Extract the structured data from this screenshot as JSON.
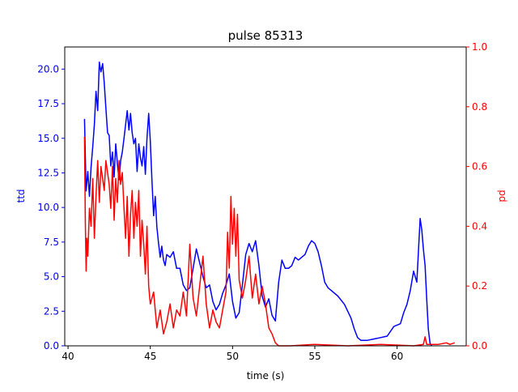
{
  "chart_data": {
    "type": "line",
    "title": "pulse 85313",
    "xlabel": "time (s)",
    "ylabel_left": "ttd",
    "ylabel_right": "pd",
    "xlim": [
      39.8,
      64.2
    ],
    "ylim_left": [
      0,
      21.6
    ],
    "ylim_right": [
      0,
      1.0
    ],
    "x_ticks": [
      40,
      45,
      50,
      55,
      60
    ],
    "y_ticks_left": [
      0.0,
      2.5,
      5.0,
      7.5,
      10.0,
      12.5,
      15.0,
      17.5,
      20.0
    ],
    "y_ticks_right": [
      0.0,
      0.2,
      0.4,
      0.6,
      0.8,
      1.0
    ],
    "grid": false,
    "colors": {
      "ttd": "#0000ff",
      "pd": "#ff0000",
      "axes": "#000000"
    },
    "series": [
      {
        "name": "ttd",
        "axis": "left",
        "color": "#0000ff",
        "points": [
          [
            41.0,
            16.4
          ],
          [
            41.1,
            11.2
          ],
          [
            41.2,
            12.6
          ],
          [
            41.3,
            10.8
          ],
          [
            41.4,
            12.9
          ],
          [
            41.5,
            14.4
          ],
          [
            41.6,
            16.0
          ],
          [
            41.7,
            18.4
          ],
          [
            41.8,
            17.0
          ],
          [
            41.9,
            20.5
          ],
          [
            42.0,
            19.8
          ],
          [
            42.1,
            20.4
          ],
          [
            42.2,
            19.0
          ],
          [
            42.3,
            17.2
          ],
          [
            42.4,
            15.4
          ],
          [
            42.5,
            15.2
          ],
          [
            42.6,
            13.0
          ],
          [
            42.7,
            14.0
          ],
          [
            42.8,
            12.2
          ],
          [
            42.9,
            14.6
          ],
          [
            43.0,
            13.2
          ],
          [
            43.1,
            12.0
          ],
          [
            43.2,
            13.4
          ],
          [
            43.3,
            14.0
          ],
          [
            43.4,
            15.0
          ],
          [
            43.5,
            16.0
          ],
          [
            43.6,
            17.0
          ],
          [
            43.7,
            15.6
          ],
          [
            43.8,
            16.8
          ],
          [
            43.9,
            15.4
          ],
          [
            44.0,
            14.6
          ],
          [
            44.1,
            15.0
          ],
          [
            44.2,
            12.6
          ],
          [
            44.3,
            14.6
          ],
          [
            44.4,
            13.6
          ],
          [
            44.5,
            13.0
          ],
          [
            44.6,
            14.4
          ],
          [
            44.7,
            12.4
          ],
          [
            44.8,
            15.0
          ],
          [
            44.9,
            16.8
          ],
          [
            45.0,
            14.8
          ],
          [
            45.1,
            12.0
          ],
          [
            45.2,
            9.4
          ],
          [
            45.3,
            10.8
          ],
          [
            45.4,
            8.6
          ],
          [
            45.5,
            7.4
          ],
          [
            45.6,
            6.4
          ],
          [
            45.7,
            7.2
          ],
          [
            45.8,
            6.2
          ],
          [
            45.9,
            5.8
          ],
          [
            46.0,
            6.6
          ],
          [
            46.2,
            6.4
          ],
          [
            46.4,
            6.8
          ],
          [
            46.6,
            5.6
          ],
          [
            46.8,
            5.6
          ],
          [
            47.0,
            4.4
          ],
          [
            47.2,
            4.0
          ],
          [
            47.4,
            4.2
          ],
          [
            47.6,
            5.6
          ],
          [
            47.8,
            7.0
          ],
          [
            48.0,
            6.0
          ],
          [
            48.2,
            5.0
          ],
          [
            48.4,
            4.2
          ],
          [
            48.6,
            4.4
          ],
          [
            48.8,
            3.2
          ],
          [
            49.0,
            2.6
          ],
          [
            49.2,
            3.0
          ],
          [
            49.4,
            3.8
          ],
          [
            49.6,
            4.4
          ],
          [
            49.8,
            5.2
          ],
          [
            50.0,
            3.2
          ],
          [
            50.2,
            2.0
          ],
          [
            50.4,
            2.4
          ],
          [
            50.6,
            4.4
          ],
          [
            50.8,
            6.6
          ],
          [
            51.0,
            7.4
          ],
          [
            51.2,
            6.8
          ],
          [
            51.4,
            7.6
          ],
          [
            51.6,
            5.8
          ],
          [
            51.8,
            3.6
          ],
          [
            52.0,
            2.8
          ],
          [
            52.2,
            3.4
          ],
          [
            52.4,
            2.2
          ],
          [
            52.6,
            1.8
          ],
          [
            52.8,
            4.6
          ],
          [
            53.0,
            6.2
          ],
          [
            53.2,
            5.6
          ],
          [
            53.4,
            5.6
          ],
          [
            53.6,
            5.8
          ],
          [
            53.8,
            6.4
          ],
          [
            54.0,
            6.2
          ],
          [
            54.2,
            6.4
          ],
          [
            54.4,
            6.6
          ],
          [
            54.6,
            7.2
          ],
          [
            54.8,
            7.6
          ],
          [
            55.0,
            7.4
          ],
          [
            55.2,
            6.8
          ],
          [
            55.4,
            5.8
          ],
          [
            55.6,
            4.6
          ],
          [
            55.8,
            4.2
          ],
          [
            56.0,
            4.0
          ],
          [
            56.4,
            3.6
          ],
          [
            56.8,
            3.0
          ],
          [
            57.2,
            2.0
          ],
          [
            57.4,
            1.2
          ],
          [
            57.6,
            0.6
          ],
          [
            57.8,
            0.4
          ],
          [
            58.2,
            0.4
          ],
          [
            58.6,
            0.5
          ],
          [
            59.0,
            0.6
          ],
          [
            59.4,
            0.7
          ],
          [
            59.8,
            1.4
          ],
          [
            60.2,
            1.6
          ],
          [
            60.4,
            2.4
          ],
          [
            60.6,
            3.0
          ],
          [
            60.8,
            4.0
          ],
          [
            61.0,
            5.4
          ],
          [
            61.2,
            4.6
          ],
          [
            61.4,
            9.2
          ],
          [
            61.5,
            8.4
          ],
          [
            61.6,
            7.0
          ],
          [
            61.7,
            5.8
          ],
          [
            61.8,
            3.4
          ],
          [
            61.9,
            1.2
          ],
          [
            62.0,
            0.2
          ],
          [
            62.1,
            0.0
          ]
        ]
      },
      {
        "name": "pd",
        "axis": "right",
        "color": "#ff0000",
        "points": [
          [
            41.0,
            0.7
          ],
          [
            41.05,
            0.42
          ],
          [
            41.1,
            0.25
          ],
          [
            41.15,
            0.36
          ],
          [
            41.2,
            0.3
          ],
          [
            41.3,
            0.46
          ],
          [
            41.4,
            0.4
          ],
          [
            41.5,
            0.56
          ],
          [
            41.6,
            0.36
          ],
          [
            41.7,
            0.5
          ],
          [
            41.8,
            0.62
          ],
          [
            41.9,
            0.48
          ],
          [
            42.0,
            0.6
          ],
          [
            42.1,
            0.56
          ],
          [
            42.2,
            0.52
          ],
          [
            42.3,
            0.62
          ],
          [
            42.4,
            0.58
          ],
          [
            42.5,
            0.54
          ],
          [
            42.6,
            0.46
          ],
          [
            42.7,
            0.6
          ],
          [
            42.8,
            0.42
          ],
          [
            42.9,
            0.56
          ],
          [
            43.0,
            0.48
          ],
          [
            43.1,
            0.62
          ],
          [
            43.2,
            0.54
          ],
          [
            43.3,
            0.58
          ],
          [
            43.4,
            0.46
          ],
          [
            43.5,
            0.36
          ],
          [
            43.6,
            0.5
          ],
          [
            43.7,
            0.3
          ],
          [
            43.8,
            0.44
          ],
          [
            43.9,
            0.52
          ],
          [
            44.0,
            0.36
          ],
          [
            44.1,
            0.48
          ],
          [
            44.2,
            0.4
          ],
          [
            44.3,
            0.52
          ],
          [
            44.4,
            0.3
          ],
          [
            44.5,
            0.42
          ],
          [
            44.6,
            0.34
          ],
          [
            44.7,
            0.24
          ],
          [
            44.8,
            0.4
          ],
          [
            44.9,
            0.2
          ],
          [
            45.0,
            0.14
          ],
          [
            45.2,
            0.18
          ],
          [
            45.4,
            0.06
          ],
          [
            45.6,
            0.12
          ],
          [
            45.8,
            0.04
          ],
          [
            46.0,
            0.08
          ],
          [
            46.2,
            0.14
          ],
          [
            46.4,
            0.06
          ],
          [
            46.6,
            0.12
          ],
          [
            46.8,
            0.1
          ],
          [
            47.0,
            0.18
          ],
          [
            47.2,
            0.1
          ],
          [
            47.4,
            0.34
          ],
          [
            47.6,
            0.16
          ],
          [
            47.8,
            0.1
          ],
          [
            48.0,
            0.2
          ],
          [
            48.2,
            0.3
          ],
          [
            48.4,
            0.14
          ],
          [
            48.6,
            0.06
          ],
          [
            48.8,
            0.12
          ],
          [
            49.0,
            0.08
          ],
          [
            49.2,
            0.06
          ],
          [
            49.4,
            0.12
          ],
          [
            49.6,
            0.18
          ],
          [
            49.7,
            0.38
          ],
          [
            49.8,
            0.26
          ],
          [
            49.9,
            0.5
          ],
          [
            50.0,
            0.34
          ],
          [
            50.1,
            0.46
          ],
          [
            50.2,
            0.3
          ],
          [
            50.3,
            0.44
          ],
          [
            50.4,
            0.22
          ],
          [
            50.6,
            0.16
          ],
          [
            50.8,
            0.22
          ],
          [
            51.0,
            0.3
          ],
          [
            51.2,
            0.16
          ],
          [
            51.4,
            0.24
          ],
          [
            51.6,
            0.14
          ],
          [
            51.8,
            0.2
          ],
          [
            52.0,
            0.14
          ],
          [
            52.2,
            0.06
          ],
          [
            52.4,
            0.04
          ],
          [
            52.6,
            0.01
          ],
          [
            52.8,
            0.0
          ],
          [
            53.5,
            0.0
          ],
          [
            55.0,
            0.005
          ],
          [
            57.0,
            0.0
          ],
          [
            59.0,
            0.005
          ],
          [
            61.0,
            0.0
          ],
          [
            61.6,
            0.005
          ],
          [
            61.7,
            0.03
          ],
          [
            61.8,
            0.005
          ],
          [
            62.5,
            0.005
          ],
          [
            63.0,
            0.01
          ],
          [
            63.2,
            0.005
          ],
          [
            63.5,
            0.01
          ]
        ]
      }
    ]
  }
}
